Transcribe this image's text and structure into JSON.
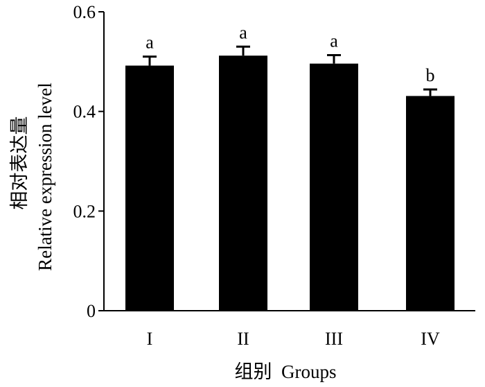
{
  "chart_data": {
    "type": "bar",
    "categories": [
      "I",
      "II",
      "III",
      "IV"
    ],
    "values": [
      0.492,
      0.512,
      0.496,
      0.431
    ],
    "errors": [
      0.018,
      0.018,
      0.017,
      0.013
    ],
    "significance_letters": [
      "a",
      "a",
      "a",
      "b"
    ],
    "ylabel_cn": "相对表达量",
    "ylabel_en": "Relative expression level",
    "xlabel": "组别  Groups",
    "ylim": [
      0,
      0.6
    ],
    "yticks": [
      0,
      0.2,
      0.4,
      0.6
    ],
    "ytick_labels": [
      "0",
      "0.2",
      "0.4",
      "0.6"
    ],
    "grid": false,
    "bar_color": "#000000"
  }
}
